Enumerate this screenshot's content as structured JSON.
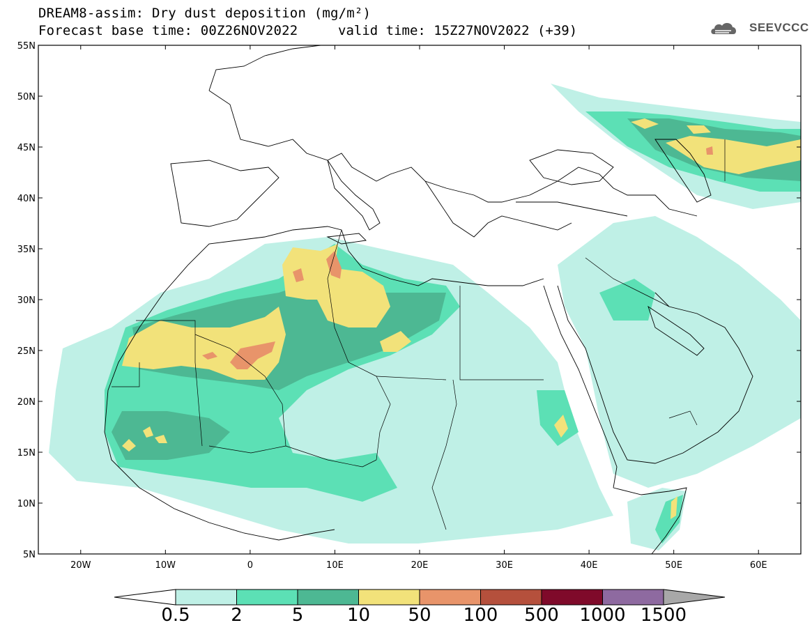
{
  "header": {
    "title_line1": "DREAM8-assim: Dry dust deposition (mg/m²)",
    "title_line2": "Forecast base time: 00Z26NOV2022",
    "valid_time": "valid time: 15Z27NOV2022 (+39)",
    "logo_text": "SEEVCCC",
    "logo_icon": "cloud-icon"
  },
  "map": {
    "lat_labels": [
      "55N",
      "50N",
      "45N",
      "40N",
      "35N",
      "30N",
      "25N",
      "20N",
      "15N",
      "10N",
      "5N"
    ],
    "lon_labels": [
      "20W",
      "10W",
      "0",
      "10E",
      "20E",
      "30E",
      "40E",
      "50E",
      "60E"
    ],
    "lat_range": [
      5,
      55
    ],
    "lon_range": [
      -25,
      65
    ],
    "lat_values": [
      55,
      50,
      45,
      40,
      35,
      30,
      25,
      20,
      15,
      10,
      5
    ],
    "lon_values": [
      -20,
      -10,
      0,
      10,
      20,
      30,
      40,
      50,
      60
    ]
  },
  "legend": {
    "thresholds": [
      "0.5",
      "2",
      "5",
      "10",
      "50",
      "100",
      "500",
      "1000",
      "1500"
    ],
    "colors": [
      "#bff0e6",
      "#5ce0b5",
      "#4db893",
      "#f2e27a",
      "#e8946a",
      "#b5503c",
      "#7f0a2a",
      "#8e6aa0"
    ],
    "under_color": "#ffffff",
    "over_color": "#a8a8a8"
  },
  "colors": {
    "level1": "#bff0e6",
    "level2": "#5ce0b5",
    "level3": "#4db893",
    "level4": "#f2e27a",
    "level5": "#e8946a"
  }
}
